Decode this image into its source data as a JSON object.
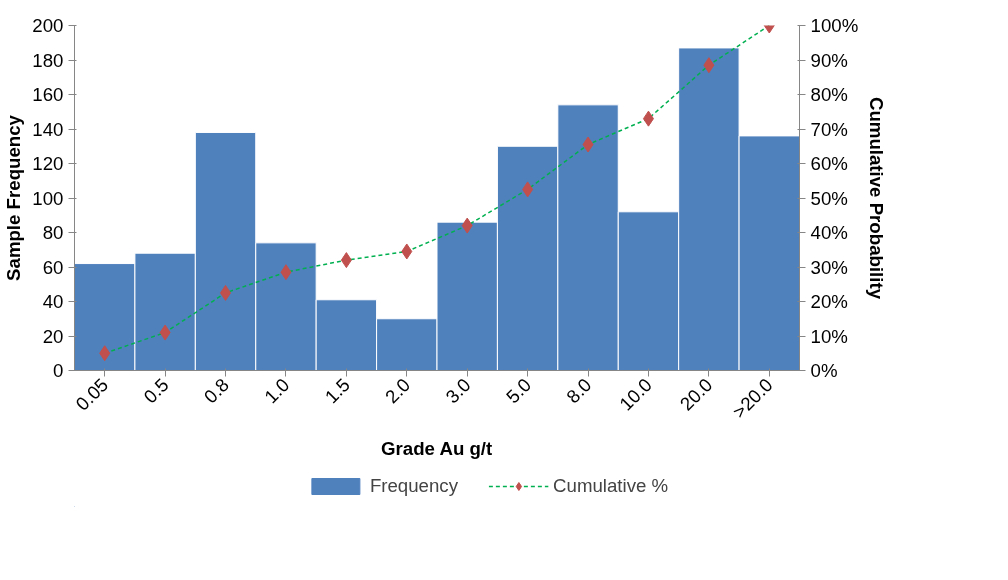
{
  "chart_data": {
    "type": "bar",
    "xlabel": "Grade Au g/t",
    "ylabel": "Sample Frequency",
    "y2label": "Cumulative Probability",
    "categories": [
      "0.05",
      "0.5",
      "0.8",
      "1.0",
      "1.5",
      "2.0",
      "3.0",
      "5.0",
      "8.0",
      "10.0",
      "20.0",
      ">20.0"
    ],
    "series": [
      {
        "name": "Frequency",
        "color": "#4f81bd",
        "values": [
          62,
          68,
          138,
          74,
          41,
          30,
          86,
          130,
          154,
          92,
          187,
          136
        ]
      },
      {
        "name": "Cumulative %",
        "type": "line",
        "axis": "y2",
        "color": "#00b050",
        "colors": [
          "#c0504d",
          "#c0504d",
          "#c0504d",
          "#c0504d",
          "#c0504d",
          "#c0504d",
          "#c0504d",
          "#c0504d",
          "#c0504d",
          "#c0504d",
          "#c0504d",
          "#c0504d"
        ],
        "marker": "diamond",
        "line_style": "dashed",
        "values": [
          5,
          11,
          22.5,
          28.5,
          32,
          34.5,
          42,
          52.5,
          65.5,
          73,
          88.5,
          100
        ]
      }
    ],
    "ylim": [
      0,
      200
    ],
    "yticks": [
      0,
      20,
      40,
      60,
      80,
      100,
      120,
      140,
      160,
      180,
      200
    ],
    "y2lim": [
      0,
      100
    ],
    "y2ticks": [
      {
        "value": 0,
        "label": "0%"
      },
      {
        "value": 10,
        "label": "10%"
      },
      {
        "value": 20,
        "label": "20%"
      },
      {
        "value": 30,
        "label": "30%"
      },
      {
        "value": 40,
        "label": "40%"
      },
      {
        "value": 50,
        "label": "50%"
      },
      {
        "value": 60,
        "label": "60%"
      },
      {
        "value": 70,
        "label": "70%"
      },
      {
        "value": 80,
        "label": "80%"
      },
      {
        "value": 90,
        "label": "90%"
      },
      {
        "value": 100,
        "label": "100%"
      }
    ],
    "grid": false,
    "legend": "bottom"
  }
}
